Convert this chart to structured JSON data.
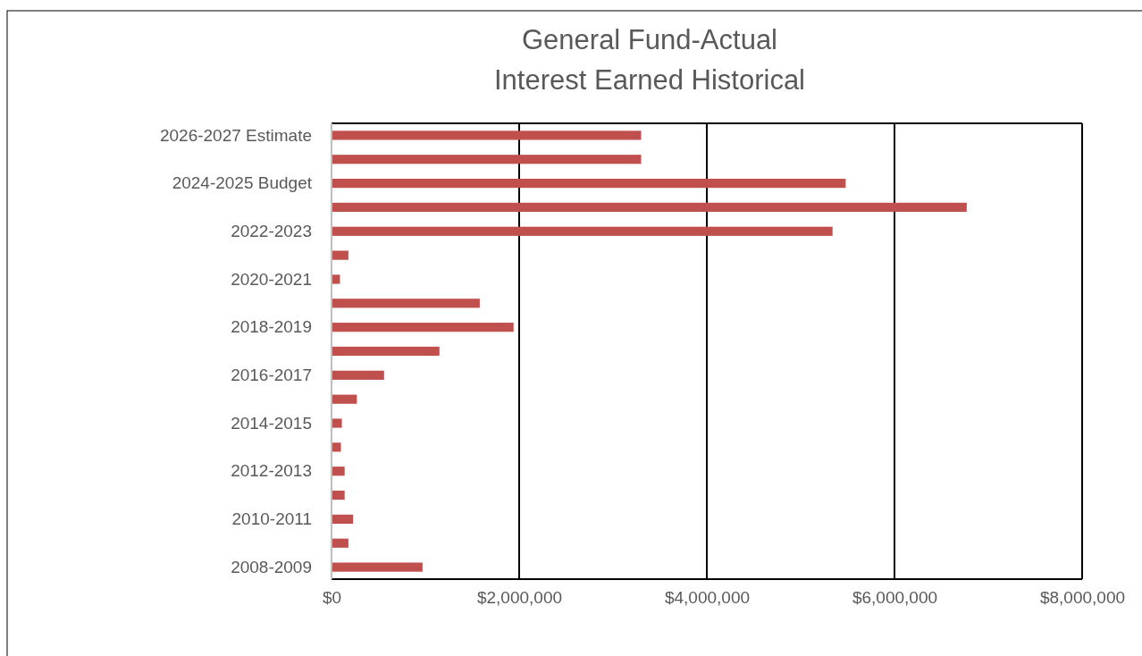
{
  "chart_data": {
    "type": "bar",
    "orientation": "horizontal",
    "title": "General Fund-Actual",
    "subtitle": "Interest Earned Historical",
    "categories": [
      "2026-2027 Estimate",
      null,
      "2024-2025 Budget",
      null,
      "2022-2023",
      null,
      "2020-2021",
      null,
      "2018-2019",
      null,
      "2016-2017",
      null,
      "2014-2015",
      null,
      "2012-2013",
      null,
      "2010-2011",
      null,
      "2008-2009"
    ],
    "values": [
      3300000,
      3300000,
      5480000,
      6770000,
      5340000,
      180000,
      90000,
      1580000,
      1940000,
      1150000,
      560000,
      270000,
      110000,
      100000,
      140000,
      140000,
      230000,
      180000,
      970000
    ],
    "color": "#c0504d",
    "xlim": [
      0,
      8000000
    ],
    "xticks": [
      {
        "value": 0,
        "label": "$0"
      },
      {
        "value": 2000000,
        "label": "$2,000,000"
      },
      {
        "value": 4000000,
        "label": "$4,000,000"
      },
      {
        "value": 6000000,
        "label": "$6,000,000"
      },
      {
        "value": 8000000,
        "label": "$8,000,000"
      }
    ],
    "grid": "x"
  }
}
